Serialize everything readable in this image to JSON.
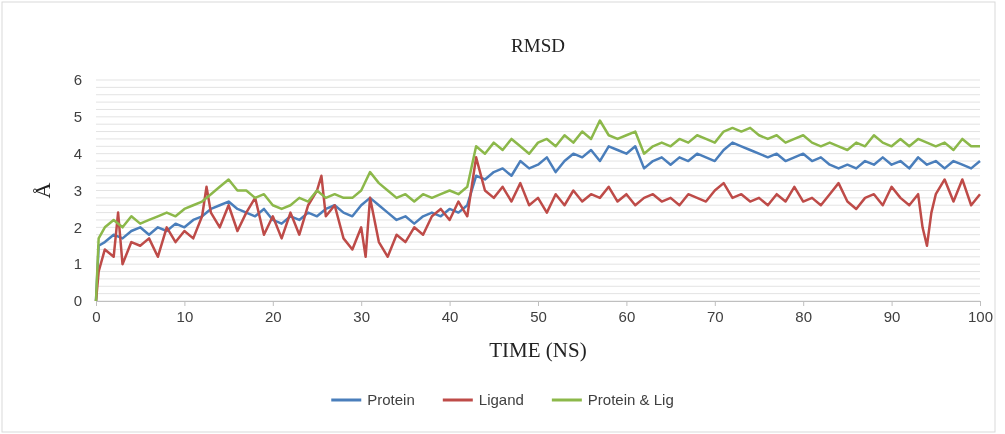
{
  "chart_data": {
    "type": "line",
    "title": "RMSD",
    "xlabel": "TIME (NS)",
    "ylabel": "Å",
    "xlim": [
      0,
      100
    ],
    "xticks": [
      0,
      10,
      20,
      30,
      40,
      50,
      60,
      70,
      80,
      90,
      100
    ],
    "ylim": [
      0,
      6
    ],
    "yticks": [
      0,
      {
        "value": 0.2,
        "label": null
      },
      {
        "value": 0.4,
        "label": null
      },
      {
        "value": 0.6,
        "label": null
      },
      {
        "value": 0.8,
        "label": null
      },
      1,
      {
        "value": 1.2,
        "label": null
      },
      {
        "value": 1.4,
        "label": null
      },
      {
        "value": 1.6,
        "label": null
      },
      {
        "value": 1.8,
        "label": null
      },
      2,
      {
        "value": 2.2,
        "label": null
      },
      {
        "value": 2.4,
        "label": null
      },
      {
        "value": 2.6,
        "label": null
      },
      {
        "value": 2.8,
        "label": null
      },
      3,
      {
        "value": 3.2,
        "label": null
      },
      {
        "value": 3.4,
        "label": null
      },
      {
        "value": 3.6,
        "label": null
      },
      {
        "value": 3.8,
        "label": null
      },
      4,
      {
        "value": 4.2,
        "label": null
      },
      {
        "value": 4.4,
        "label": null
      },
      {
        "value": 4.6,
        "label": null
      },
      {
        "value": 4.8,
        "label": null
      },
      5,
      {
        "value": 5.2,
        "label": null
      },
      {
        "value": 5.4,
        "label": null
      },
      {
        "value": 5.6,
        "label": null
      },
      {
        "value": 5.8,
        "label": null
      },
      6
    ],
    "grid": "y",
    "legend": "bottom",
    "marker": "none",
    "line_style": "solid",
    "series": [
      {
        "name": "Protein",
        "color": "#4a7ebb",
        "x": [
          0,
          0.3,
          1,
          2,
          3,
          4,
          5,
          6,
          7,
          8,
          9,
          10,
          11,
          12,
          13,
          14,
          15,
          16,
          17,
          18,
          19,
          20,
          21,
          22,
          23,
          24,
          25,
          26,
          27,
          28,
          29,
          30,
          31,
          32,
          33,
          34,
          35,
          36,
          37,
          38,
          39,
          40,
          41,
          42,
          43,
          44,
          45,
          46,
          47,
          48,
          49,
          50,
          51,
          52,
          53,
          54,
          55,
          56,
          57,
          58,
          59,
          60,
          61,
          62,
          63,
          64,
          65,
          66,
          67,
          68,
          69,
          70,
          71,
          72,
          73,
          74,
          75,
          76,
          77,
          78,
          79,
          80,
          81,
          82,
          83,
          84,
          85,
          86,
          87,
          88,
          89,
          90,
          91,
          92,
          93,
          94,
          95,
          96,
          97,
          98,
          99,
          100
        ],
        "values": [
          0,
          1.5,
          1.6,
          1.8,
          1.7,
          1.9,
          2.0,
          1.8,
          2.0,
          1.9,
          2.1,
          2.0,
          2.2,
          2.3,
          2.5,
          2.6,
          2.7,
          2.5,
          2.4,
          2.3,
          2.5,
          2.2,
          2.1,
          2.3,
          2.2,
          2.4,
          2.3,
          2.5,
          2.6,
          2.4,
          2.3,
          2.6,
          2.8,
          2.6,
          2.4,
          2.2,
          2.3,
          2.1,
          2.3,
          2.4,
          2.3,
          2.5,
          2.4,
          2.6,
          3.4,
          3.3,
          3.5,
          3.6,
          3.4,
          3.8,
          3.6,
          3.7,
          3.9,
          3.5,
          3.8,
          4.0,
          3.9,
          4.1,
          3.8,
          4.2,
          4.1,
          4.0,
          4.2,
          3.6,
          3.8,
          3.9,
          3.7,
          3.9,
          3.8,
          4.0,
          3.9,
          3.8,
          4.1,
          4.3,
          4.2,
          4.1,
          4.0,
          3.9,
          4.0,
          3.8,
          3.9,
          4.0,
          3.8,
          3.9,
          3.7,
          3.6,
          3.7,
          3.6,
          3.8,
          3.7,
          3.9,
          3.7,
          3.8,
          3.6,
          3.9,
          3.7,
          3.8,
          3.6,
          3.8,
          3.7,
          3.6,
          3.8
        ]
      },
      {
        "name": "Ligand",
        "color": "#be4b48",
        "x": [
          0,
          0.3,
          1,
          2,
          2.5,
          3,
          4,
          5,
          6,
          7,
          8,
          9,
          10,
          11,
          12,
          12.5,
          13,
          14,
          15,
          16,
          17,
          18,
          19,
          20,
          21,
          22,
          23,
          24,
          25,
          25.5,
          26,
          27,
          28,
          29,
          30,
          30.5,
          31,
          32,
          33,
          34,
          35,
          36,
          37,
          38,
          39,
          40,
          41,
          42,
          43,
          44,
          45,
          46,
          47,
          48,
          49,
          50,
          51,
          52,
          53,
          54,
          55,
          56,
          57,
          58,
          59,
          60,
          61,
          62,
          63,
          64,
          65,
          66,
          67,
          68,
          69,
          70,
          71,
          72,
          73,
          74,
          75,
          76,
          77,
          78,
          79,
          80,
          81,
          82,
          83,
          84,
          85,
          86,
          87,
          88,
          89,
          90,
          91,
          92,
          93,
          93.5,
          94,
          94.5,
          95,
          96,
          97,
          98,
          99,
          100
        ],
        "values": [
          0,
          0.8,
          1.4,
          1.2,
          2.4,
          1.0,
          1.6,
          1.5,
          1.7,
          1.2,
          2.0,
          1.6,
          1.9,
          1.7,
          2.3,
          3.1,
          2.4,
          2.0,
          2.6,
          1.9,
          2.4,
          2.8,
          1.8,
          2.3,
          1.7,
          2.4,
          1.8,
          2.6,
          3.0,
          3.4,
          2.3,
          2.6,
          1.7,
          1.4,
          2.0,
          1.2,
          2.8,
          1.6,
          1.2,
          1.8,
          1.6,
          2.0,
          1.8,
          2.3,
          2.5,
          2.2,
          2.7,
          2.3,
          3.9,
          3.0,
          2.8,
          3.1,
          2.7,
          3.2,
          2.6,
          2.8,
          2.4,
          2.9,
          2.6,
          3.0,
          2.7,
          2.9,
          2.8,
          3.1,
          2.7,
          2.9,
          2.6,
          2.8,
          2.9,
          2.7,
          2.8,
          2.6,
          2.9,
          2.8,
          2.7,
          3.0,
          3.2,
          2.8,
          2.9,
          2.7,
          2.8,
          2.6,
          2.9,
          2.7,
          3.1,
          2.7,
          2.8,
          2.6,
          2.9,
          3.2,
          2.7,
          2.5,
          2.8,
          2.9,
          2.6,
          3.1,
          2.8,
          2.6,
          2.9,
          2.0,
          1.5,
          2.4,
          2.9,
          3.3,
          2.7,
          3.3,
          2.6,
          2.9
        ]
      },
      {
        "name": "Protein & Lig",
        "color": "#8cb84a",
        "x": [
          0,
          0.3,
          1,
          2,
          3,
          4,
          5,
          6,
          7,
          8,
          9,
          10,
          11,
          12,
          13,
          14,
          15,
          16,
          17,
          18,
          19,
          20,
          21,
          22,
          23,
          24,
          25,
          26,
          27,
          28,
          29,
          30,
          31,
          32,
          33,
          34,
          35,
          36,
          37,
          38,
          39,
          40,
          41,
          42,
          43,
          44,
          45,
          46,
          47,
          48,
          49,
          50,
          51,
          52,
          53,
          54,
          55,
          56,
          57,
          58,
          59,
          60,
          61,
          62,
          63,
          64,
          65,
          66,
          67,
          68,
          69,
          70,
          71,
          72,
          73,
          74,
          75,
          76,
          77,
          78,
          79,
          80,
          81,
          82,
          83,
          84,
          85,
          86,
          87,
          88,
          89,
          90,
          91,
          92,
          93,
          94,
          95,
          96,
          97,
          98,
          99,
          100
        ],
        "values": [
          0,
          1.7,
          2.0,
          2.2,
          2.0,
          2.3,
          2.1,
          2.2,
          2.3,
          2.4,
          2.3,
          2.5,
          2.6,
          2.7,
          2.9,
          3.1,
          3.3,
          3.0,
          3.0,
          2.8,
          2.9,
          2.6,
          2.5,
          2.6,
          2.8,
          2.7,
          3.0,
          2.8,
          2.9,
          2.8,
          2.8,
          3.0,
          3.5,
          3.2,
          3.0,
          2.8,
          2.9,
          2.7,
          2.9,
          2.8,
          2.9,
          3.0,
          2.9,
          3.1,
          4.2,
          4.0,
          4.3,
          4.1,
          4.4,
          4.2,
          4.0,
          4.3,
          4.4,
          4.2,
          4.5,
          4.3,
          4.6,
          4.4,
          4.9,
          4.5,
          4.4,
          4.5,
          4.6,
          4.0,
          4.2,
          4.3,
          4.2,
          4.4,
          4.3,
          4.5,
          4.4,
          4.3,
          4.6,
          4.7,
          4.6,
          4.7,
          4.5,
          4.4,
          4.5,
          4.3,
          4.4,
          4.5,
          4.3,
          4.2,
          4.3,
          4.2,
          4.1,
          4.3,
          4.2,
          4.5,
          4.3,
          4.2,
          4.4,
          4.2,
          4.4,
          4.3,
          4.2,
          4.3,
          4.1,
          4.4,
          4.2,
          4.2
        ]
      }
    ]
  }
}
